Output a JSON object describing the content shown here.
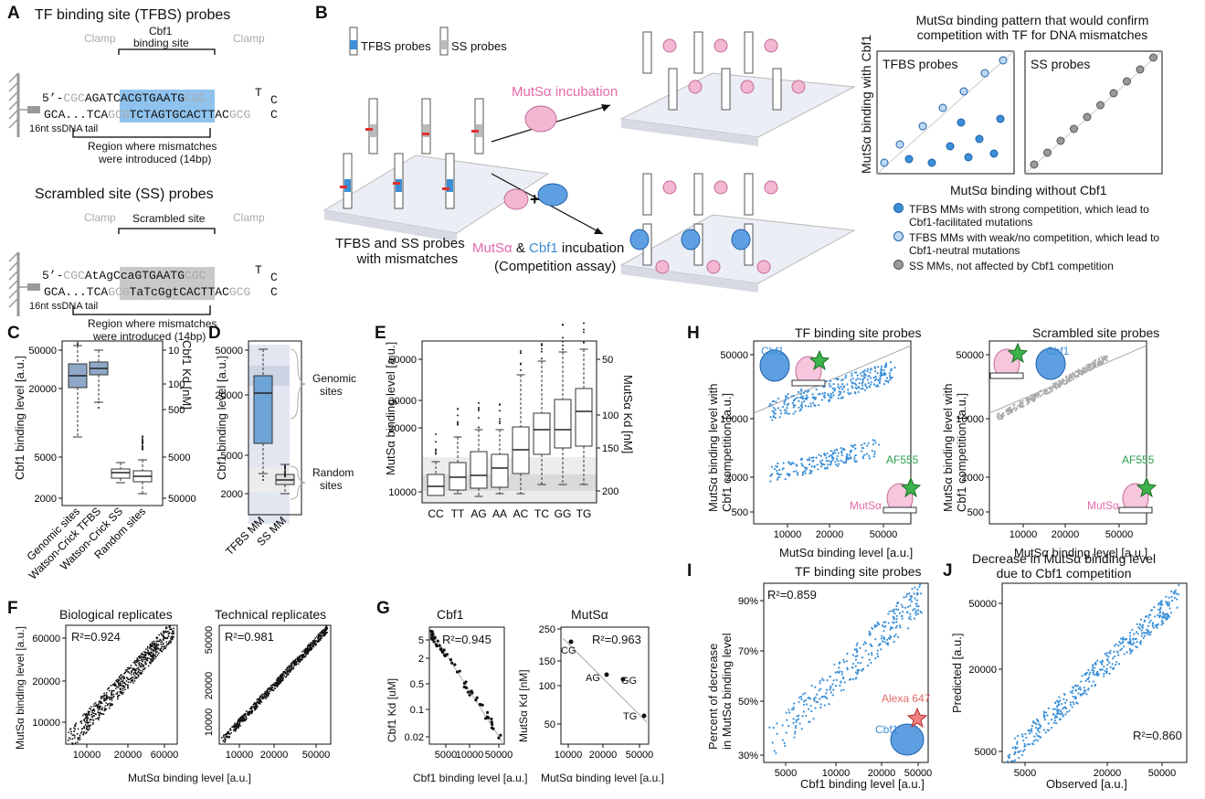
{
  "panels": {
    "A": {
      "label": "A",
      "title1": "TF binding site (TFBS) probes",
      "title2": "Scrambled site (SS) probes",
      "clamp": "Clamp",
      "site1": "Cbf1",
      "site1b": "binding site",
      "site2": "Scrambled site",
      "seq1top_a": "5’-",
      "seq1top_b": "CGC",
      "seq1top_c": "AGA",
      "seq1top_d": "TCACGTGA",
      "seq1top_e": "ATG",
      "seq1top_f": "CGC",
      "loopT": "T",
      "loopC": "C",
      "seq1bot_a": "GCA...TCA",
      "seq1bot_b": "GCG",
      "seq1bot_c": "TCT",
      "seq1bot_d": "AGTGCACT",
      "seq1bot_e": "TAC",
      "seq1bot_f": "GCG",
      "seq2top_a": "5’-",
      "seq2top_b": "CGC",
      "seq2top_c": "AtAgCcaGTGAATG",
      "seq2top_f": "CGC",
      "seq2bot_a": "GCA...TCA",
      "seq2bot_b": "GCG",
      "seq2bot_c": "TaTcGgtCACTTAC",
      "seq2bot_f": "GCG",
      "tail": "16nt ssDNA tail",
      "region": "Region where mismatches",
      "region2": "were introduced (14bp)"
    },
    "B": {
      "label": "B",
      "leg_tfbs": "TFBS probes",
      "leg_ss": "SS probes",
      "mutsa_inc": "MutSα incubation",
      "combo1": "MutSα",
      "combo2": "&",
      "combo3": "Cbf1",
      "combo4": "incubation",
      "competition": "(Competition assay)",
      "chip1": "TFBS and SS probes",
      "chip2": "with mismatches",
      "plus": "+",
      "pattern_title1": "MutSα binding pattern that would confirm",
      "pattern_title2": "competition with TF for DNA mismatches",
      "tfbs_probes": "TFBS probes",
      "ss_probes": "SS probes",
      "ylab": "MutSα binding with Cbf1",
      "xlab": "MutSα binding without Cbf1",
      "legend": [
        "TFBS MMs with strong competition, which lead to",
        "Cbf1-facilitated mutations",
        "TFBS MMs with weak/no competition, which lead to",
        "Cbf1-neutral mutations",
        "SS MMs, not affected by Cbf1 competition"
      ]
    },
    "C": {
      "label": "C",
      "ylab": "Cbf1 binding level [a.u.]",
      "ylab2": "Cbf1 Kd [nM]",
      "yticks": [
        "50000",
        "20000",
        "5000",
        "2000"
      ],
      "y2ticks": [
        "10",
        "100",
        "500",
        "5000",
        "50000"
      ],
      "cats": [
        "Genomic sites",
        "Watson-Crick TFBS",
        "Watson-Crick SS",
        "Random sites"
      ]
    },
    "D": {
      "label": "D",
      "ylab": "Cbf1 binding level [a.u.]",
      "yticks": [
        "50000",
        "20000",
        "5000",
        "2000"
      ],
      "cats": [
        "TFBS MM",
        "SS MM"
      ],
      "genomic": "Genomic",
      "sites": "sites",
      "random": "Random",
      "rsites": "sites"
    },
    "E": {
      "label": "E",
      "ylab": "MutSα binding level [a.u.]",
      "ylab2": "MutSα Kd [nM]",
      "yticks": [
        "50000",
        "30000",
        "20000",
        "10000"
      ],
      "y2ticks": [
        "50",
        "100",
        "150",
        "200"
      ],
      "cats": [
        "CC",
        "TT",
        "AG",
        "AA",
        "AC",
        "TC",
        "GG",
        "TG"
      ]
    },
    "F": {
      "label": "F",
      "t1": "Biological replicates",
      "t2": "Technical replicates",
      "r1": "R²=0.924",
      "r2": "R²=0.981",
      "ylab": "MutSα binding level [a.u.]",
      "xlab": "MutSα binding level [a.u.]",
      "x1": [
        "10000",
        "20000",
        "60000"
      ],
      "y1": [
        "10000",
        "20000",
        "60000"
      ],
      "x2": [
        "10000",
        "20000",
        "50000"
      ],
      "y2": [
        "10000",
        "20000",
        "50000"
      ]
    },
    "G": {
      "label": "G",
      "t1": "Cbf1",
      "t2": "MutSα",
      "r1": "R²=0.945",
      "r2": "R²=0.963",
      "ylab1": "Cbf1 Kd [uM]",
      "ylab2": "MutSα Kd [nM]",
      "xlab1": "Cbf1 binding level [a.u.]",
      "xlab2": "MutSα binding level [a.u.]",
      "y1": [
        "5",
        "2",
        "0.5",
        "0.1",
        "0.02"
      ],
      "x1": [
        "5000",
        "10000",
        "50000"
      ],
      "y2": [
        "250",
        "150",
        "100",
        "50"
      ],
      "x2": [
        "10000",
        "20000",
        "50000"
      ],
      "pts": [
        "CG",
        "AG",
        "GG",
        "TG"
      ]
    },
    "H": {
      "label": "H",
      "t1": "TF binding site probes",
      "t2": "Scrambled site probes",
      "ylab1": "MutSα binding level with",
      "ylab2": "Cbf1 competition [a.u.]",
      "xlab": "MutSα binding level [a.u.]",
      "yticks": [
        "50000",
        "10000",
        "2000",
        "500"
      ],
      "xticks": [
        "10000",
        "20000",
        "50000"
      ],
      "cbf1": "Cbf1",
      "mutsa": "MutSα",
      "af": "AF555"
    },
    "I": {
      "label": "I",
      "t": "TF binding site probes",
      "r": "R²=0.859",
      "ylab1": "Percent of decrease",
      "ylab2": "in MutSα binding level",
      "xlab": "Cbf1 binding level [a.u.]",
      "yticks": [
        "90%",
        "70%",
        "50%",
        "30%"
      ],
      "xticks": [
        "5000",
        "10000",
        "20000",
        "50000"
      ],
      "alexa": "Alexa 647",
      "cbf1": "Cbf1"
    },
    "J": {
      "label": "J",
      "t1": "Decrease in MutSα binding level",
      "t2": "due to Cbf1 competition",
      "r": "R²=0.860",
      "ylab": "Predicted [a.u.]",
      "xlab": "Observed [a.u.]",
      "yticks": [
        "50000",
        "20000",
        "5000"
      ],
      "xticks": [
        "5000",
        "20000",
        "50000"
      ]
    }
  },
  "colors": {
    "blue": "#3a8fd8",
    "lightblue": "#a9cdee",
    "darkblue": "#1f5fa8",
    "pink": "#e9a1c5",
    "gray": "#9a9a9a",
    "box": "#6fa4d6"
  }
}
